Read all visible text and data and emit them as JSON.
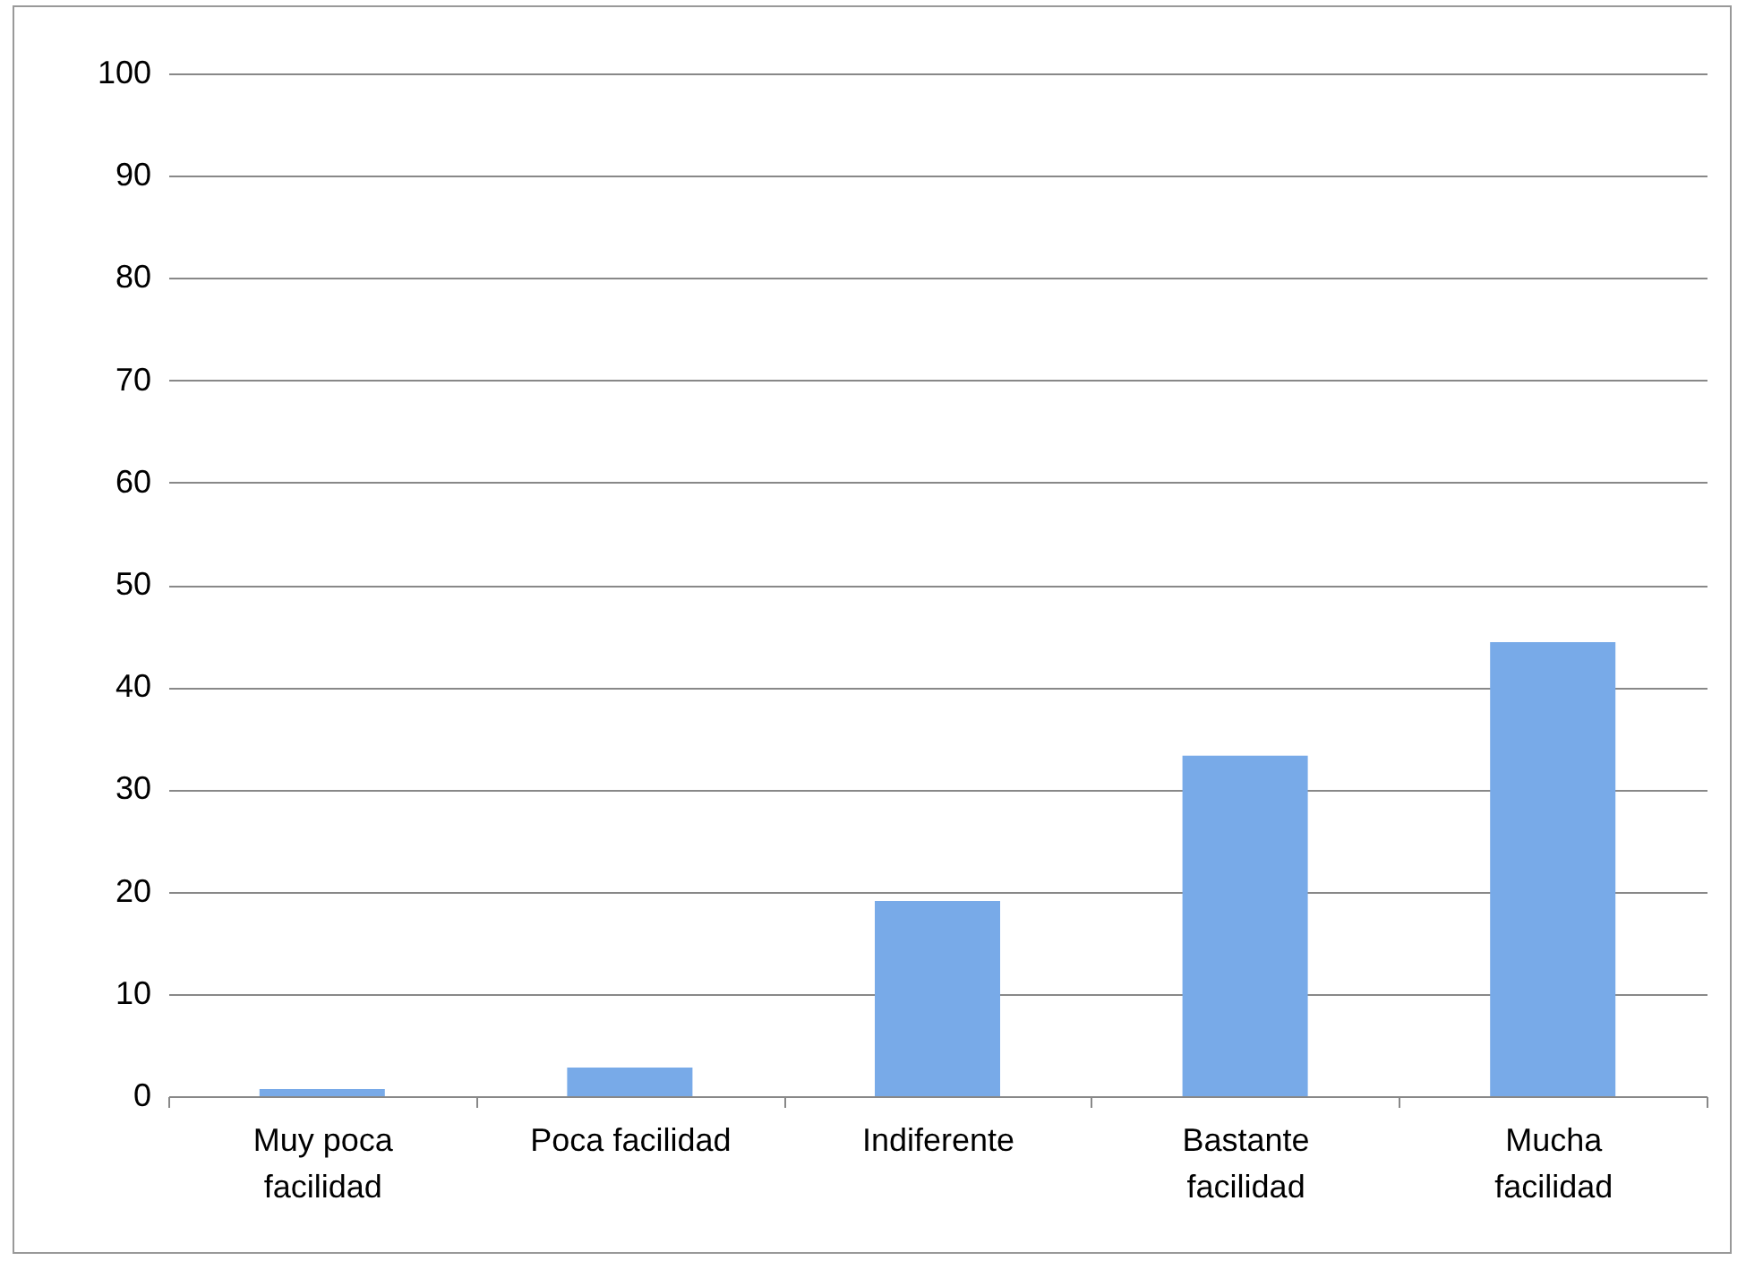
{
  "chart_data": {
    "type": "bar",
    "categories": [
      "Muy poca facilidad",
      "Poca facilidad",
      "Indiferente",
      "Bastante facilidad",
      "Mucha facilidad"
    ],
    "values": [
      0.7,
      2.8,
      19.1,
      33.3,
      44.4
    ],
    "color": "#78aae8",
    "ylim": [
      0,
      100
    ],
    "yticks": [
      0,
      10,
      20,
      30,
      40,
      50,
      60,
      70,
      80,
      90,
      100
    ],
    "grid": "y"
  }
}
